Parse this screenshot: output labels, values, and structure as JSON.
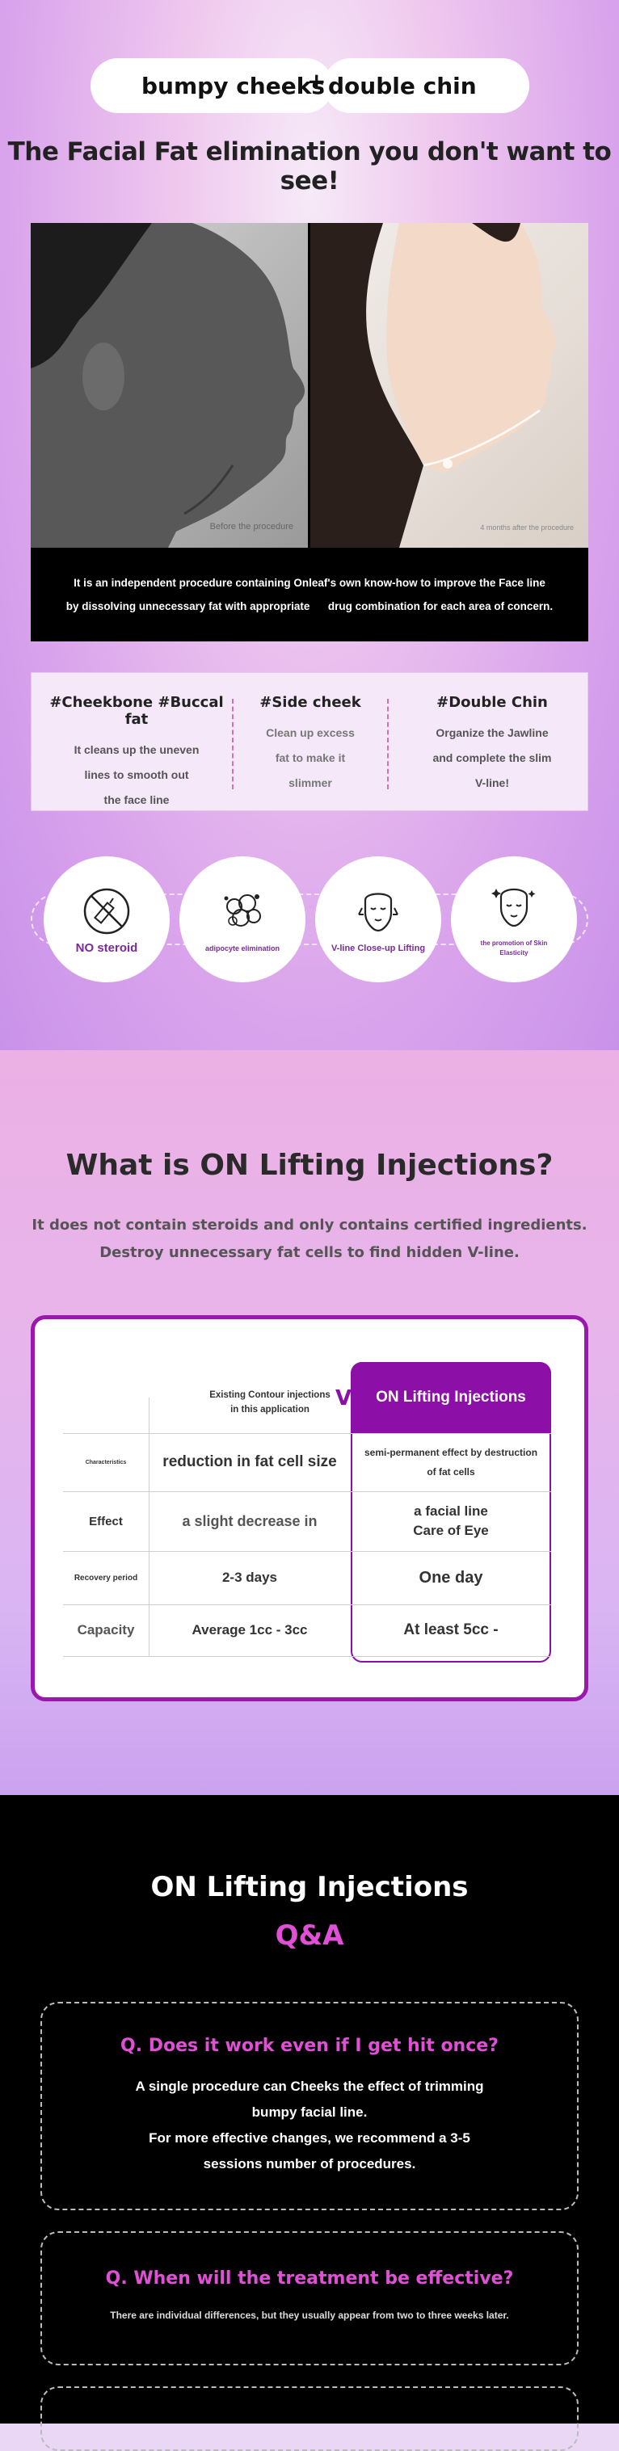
{
  "hero": {
    "pill_left": "bumpy cheeks",
    "pill_plus": "+",
    "pill_right": "double chin",
    "headline": "The Facial Fat elimination you don't want to see!",
    "before_caption": "Before the procedure",
    "after_caption": "4 months after the procedure",
    "desc_line1": "It is an independent procedure containing Onleaf's own know-how to improve the Face line",
    "desc_line2": "by dissolving unnecessary fat with appropriate      drug combination for each area of concern."
  },
  "features": [
    {
      "title": "#Cheekbone #Buccal fat",
      "lines": [
        "It cleans up the uneven",
        "lines to smooth out",
        "the face line"
      ]
    },
    {
      "title": "#Side cheek",
      "lines": [
        "Clean up excess",
        "fat to make it",
        "slimmer"
      ]
    },
    {
      "title": "#Double Chin",
      "lines": [
        "Organize the Jawline",
        "and complete the slim",
        "V-line!"
      ]
    }
  ],
  "badges": [
    {
      "label": "NO steroid",
      "icon": "no-syringe-icon"
    },
    {
      "label": "adipocyte elimination",
      "icon": "fat-cell-icon"
    },
    {
      "label": "V-line Close-up Lifting",
      "icon": "v-line-face-icon"
    },
    {
      "label": "the promotion of Skin Elasticity",
      "icon": "face-elasticity-icon"
    }
  ],
  "about": {
    "title": "What is ON Lifting Injections?",
    "sub_line1": "It does not contain steroids and only contains certified ingredients.",
    "sub_line2": "Destroy unnecessary fat cells to find hidden V-line."
  },
  "comparison": {
    "col_existing": "Existing Contour injections in this application",
    "vs": "VS",
    "col_on": "ON Lifting Injections",
    "rows": [
      {
        "label": "Characteristics",
        "existing": "reduction in fat cell size",
        "on": "semi-permanent effect by destruction of fat cells"
      },
      {
        "label": "Effect",
        "existing": "a slight decrease in",
        "on": "a facial line\nCare of Eye"
      },
      {
        "label": "Recovery period",
        "existing": "2-3 days",
        "on": "One day"
      },
      {
        "label": "Capacity",
        "existing": "Average 1cc - 3cc",
        "on": "At least 5cc -"
      }
    ]
  },
  "qa": {
    "title1": "ON Lifting Injections",
    "title2": "Q&A",
    "items": [
      {
        "q": "Q. Does it work even if I get hit once?",
        "a": [
          "A single procedure can Cheeks the effect of trimming",
          "bumpy facial line.",
          "For more effective changes, we recommend a 3-5",
          "sessions number of procedures."
        ]
      },
      {
        "q": "Q. When will the treatment be effective?",
        "a": [
          "There are individual differences, but they usually appear from two to three weeks later."
        ]
      }
    ]
  },
  "colors": {
    "accent": "#8c10a8",
    "pink": "#e04fd6"
  }
}
